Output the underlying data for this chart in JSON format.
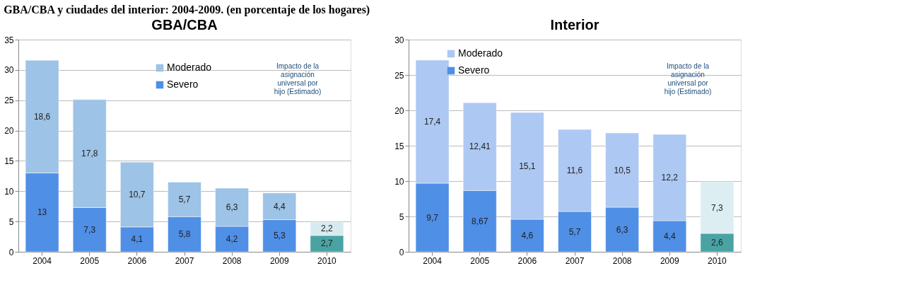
{
  "chart_data": [
    {
      "type": "bar",
      "title": "GBA/CBA",
      "subtitle": "GBA/CBA y ciudades del interior: 2004-2009. (en porcentaje de los hogares)",
      "stacked": true,
      "categories": [
        "2004",
        "2005",
        "2006",
        "2007",
        "2008",
        "2009",
        "2010"
      ],
      "ylim": [
        0,
        35
      ],
      "yticks": [
        0,
        5,
        10,
        15,
        20,
        25,
        30,
        35
      ],
      "grid": "y",
      "legend": "top",
      "data_labels": true,
      "series": [
        {
          "name": "Severo",
          "color": "#4f8fe6",
          "colors": [
            "#4f8fe6",
            "#4f8fe6",
            "#4f8fe6",
            "#4f8fe6",
            "#4f8fe6",
            "#4f8fe6",
            "#4aa3a3"
          ],
          "values": [
            13,
            7.3,
            4.1,
            5.8,
            4.2,
            5.3,
            2.7
          ],
          "value_labels": [
            "13",
            "7,3",
            "4,1",
            "5,8",
            "4,2",
            "5,3",
            "2,7"
          ]
        },
        {
          "name": "Moderado",
          "color": "#9dc3e6",
          "colors": [
            "#9dc3e6",
            "#9dc3e6",
            "#9dc3e6",
            "#9dc3e6",
            "#9dc3e6",
            "#9dc3e6",
            "#d6ebf0"
          ],
          "values": [
            18.6,
            17.8,
            10.7,
            5.7,
            6.3,
            4.4,
            2.2
          ],
          "value_labels": [
            "18,6",
            "17,8",
            "10,7",
            "5,7",
            "6,3",
            "4,4",
            "2,2"
          ]
        }
      ],
      "annotations": [
        "Impacto de la asignación universal por hijo (Estimado)"
      ]
    },
    {
      "type": "bar",
      "title": "Interior",
      "stacked": true,
      "categories": [
        "2004",
        "2005",
        "2006",
        "2007",
        "2008",
        "2009",
        "2010"
      ],
      "ylim": [
        0,
        30
      ],
      "yticks": [
        0,
        5,
        10,
        15,
        20,
        25,
        30
      ],
      "grid": "y",
      "legend": "top left",
      "data_labels": true,
      "series": [
        {
          "name": "Severo",
          "color": "#4f8fe6",
          "colors": [
            "#4f8fe6",
            "#4f8fe6",
            "#4f8fe6",
            "#4f8fe6",
            "#4f8fe6",
            "#4f8fe6",
            "#4aa3a3"
          ],
          "values": [
            9.7,
            8.67,
            4.6,
            5.7,
            6.3,
            4.4,
            2.6
          ],
          "value_labels": [
            "9,7",
            "8,67",
            "4,6",
            "5,7",
            "6,3",
            "4,4",
            "2,6"
          ]
        },
        {
          "name": "Moderado",
          "color": "#adc8f2",
          "colors": [
            "#adc8f2",
            "#adc8f2",
            "#adc8f2",
            "#adc8f2",
            "#adc8f2",
            "#adc8f2",
            "#dceef2"
          ],
          "values": [
            17.4,
            12.41,
            15.1,
            11.6,
            10.5,
            12.2,
            7.3
          ],
          "value_labels": [
            "17,4",
            "12,41",
            "15,1",
            "11,6",
            "10,5",
            "12,2",
            "7,3"
          ]
        }
      ],
      "annotations": [
        "Impacto de la asignación universal por hijo (Estimado)"
      ]
    }
  ]
}
